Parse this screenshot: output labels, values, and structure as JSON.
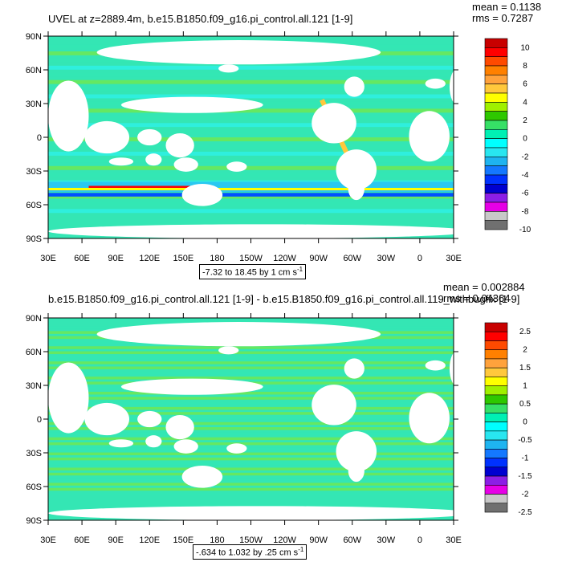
{
  "colors": {
    "ocean_main": "#34e6b4",
    "ocean_alt": "#6ee854",
    "ocean_light": "#2ff0e4",
    "ocean_blue": "#2ac8f0",
    "land": "#ffffff"
  },
  "axes": {
    "lat_ticks": [
      "90N",
      "60N",
      "30N",
      "0",
      "30S",
      "60S",
      "90S"
    ],
    "lon_ticks": [
      "30E",
      "60E",
      "90E",
      "120E",
      "150E",
      "180",
      "150W",
      "120W",
      "90W",
      "60W",
      "30W",
      "0",
      "30E"
    ]
  },
  "panel1": {
    "title": "UVEL at z=2889.4m, b.e15.B1850.f09_g16.pi_control.all.121 [1-9]",
    "mean": "mean = 0.1138",
    "rms": "rms = 0.7287",
    "range": "-7.32 to 18.45 by 1 cm s",
    "range_sup": "-1",
    "legend_labels": [
      "10",
      "8",
      "6",
      "4",
      "2",
      "0",
      "-2",
      "-4",
      "-6",
      "-8",
      "-10"
    ],
    "legend_colors": [
      "#c80000",
      "#ff0000",
      "#ff4a00",
      "#ff8000",
      "#ffa23c",
      "#ffc83c",
      "#ffff00",
      "#a0f000",
      "#2ec800",
      "#36e066",
      "#00f0b4",
      "#00ffff",
      "#28e6f0",
      "#1eb4f0",
      "#1478ff",
      "#0032ff",
      "#0000d0",
      "#8c1ee6",
      "#e600e6",
      "#c8c8c8",
      "#707070"
    ]
  },
  "panel2": {
    "title": "b.e15.B1850.f09_g16.pi_control.all.121 [1-9] - b.e15.B1850.f09_g16.pi_control.all.119_withbugfix [1-9]",
    "mean": "mean = 0.002884",
    "rms": "rms = 0.04364",
    "range": "-.634 to 1.032 by .25 cm s",
    "range_sup": "-1",
    "legend_labels": [
      "2.5",
      "2",
      "1.5",
      "1",
      "0.5",
      "0",
      "-0.5",
      "-1",
      "-1.5",
      "-2",
      "-2.5"
    ],
    "legend_colors": [
      "#c80000",
      "#ff0000",
      "#ff4a00",
      "#ff8000",
      "#ffa23c",
      "#ffc83c",
      "#ffff00",
      "#a0f000",
      "#2ec800",
      "#36e066",
      "#00f0b4",
      "#00ffff",
      "#28e6f0",
      "#1eb4f0",
      "#1478ff",
      "#0032ff",
      "#0000d0",
      "#8c1ee6",
      "#e600e6",
      "#c8c8c8",
      "#707070"
    ]
  },
  "chart_data": [
    {
      "type": "heatmap",
      "title": "UVEL at z=2889.4m, b.e15.B1850.f09_g16.pi_control.all.121 [1-9]",
      "xlabel": "",
      "ylabel": "",
      "x_ticks": [
        "30E",
        "60E",
        "90E",
        "120E",
        "150E",
        "180",
        "150W",
        "120W",
        "90W",
        "60W",
        "30W",
        "0",
        "30E"
      ],
      "y_ticks": [
        "90N",
        "60N",
        "30N",
        "0",
        "30S",
        "60S",
        "90S"
      ],
      "mean": 0.1138,
      "rms": 0.7287,
      "data_min": -7.32,
      "data_max": 18.45,
      "contour_interval": 1,
      "units": "cm s-1",
      "colorbar_levels": [
        10,
        8,
        6,
        4,
        2,
        0,
        -2,
        -4,
        -6,
        -8,
        -10
      ]
    },
    {
      "type": "heatmap",
      "title": "b.e15.B1850.f09_g16.pi_control.all.121 [1-9] - b.e15.B1850.f09_g16.pi_control.all.119_withbugfix [1-9]",
      "xlabel": "",
      "ylabel": "",
      "x_ticks": [
        "30E",
        "60E",
        "90E",
        "120E",
        "150E",
        "180",
        "150W",
        "120W",
        "90W",
        "60W",
        "30W",
        "0",
        "30E"
      ],
      "y_ticks": [
        "90N",
        "60N",
        "30N",
        "0",
        "30S",
        "60S",
        "90S"
      ],
      "mean": 0.002884,
      "rms": 0.04364,
      "data_min": -0.634,
      "data_max": 1.032,
      "contour_interval": 0.25,
      "units": "cm s-1",
      "colorbar_levels": [
        2.5,
        2,
        1.5,
        1,
        0.5,
        0,
        -0.5,
        -1,
        -1.5,
        -2,
        -2.5
      ]
    }
  ]
}
